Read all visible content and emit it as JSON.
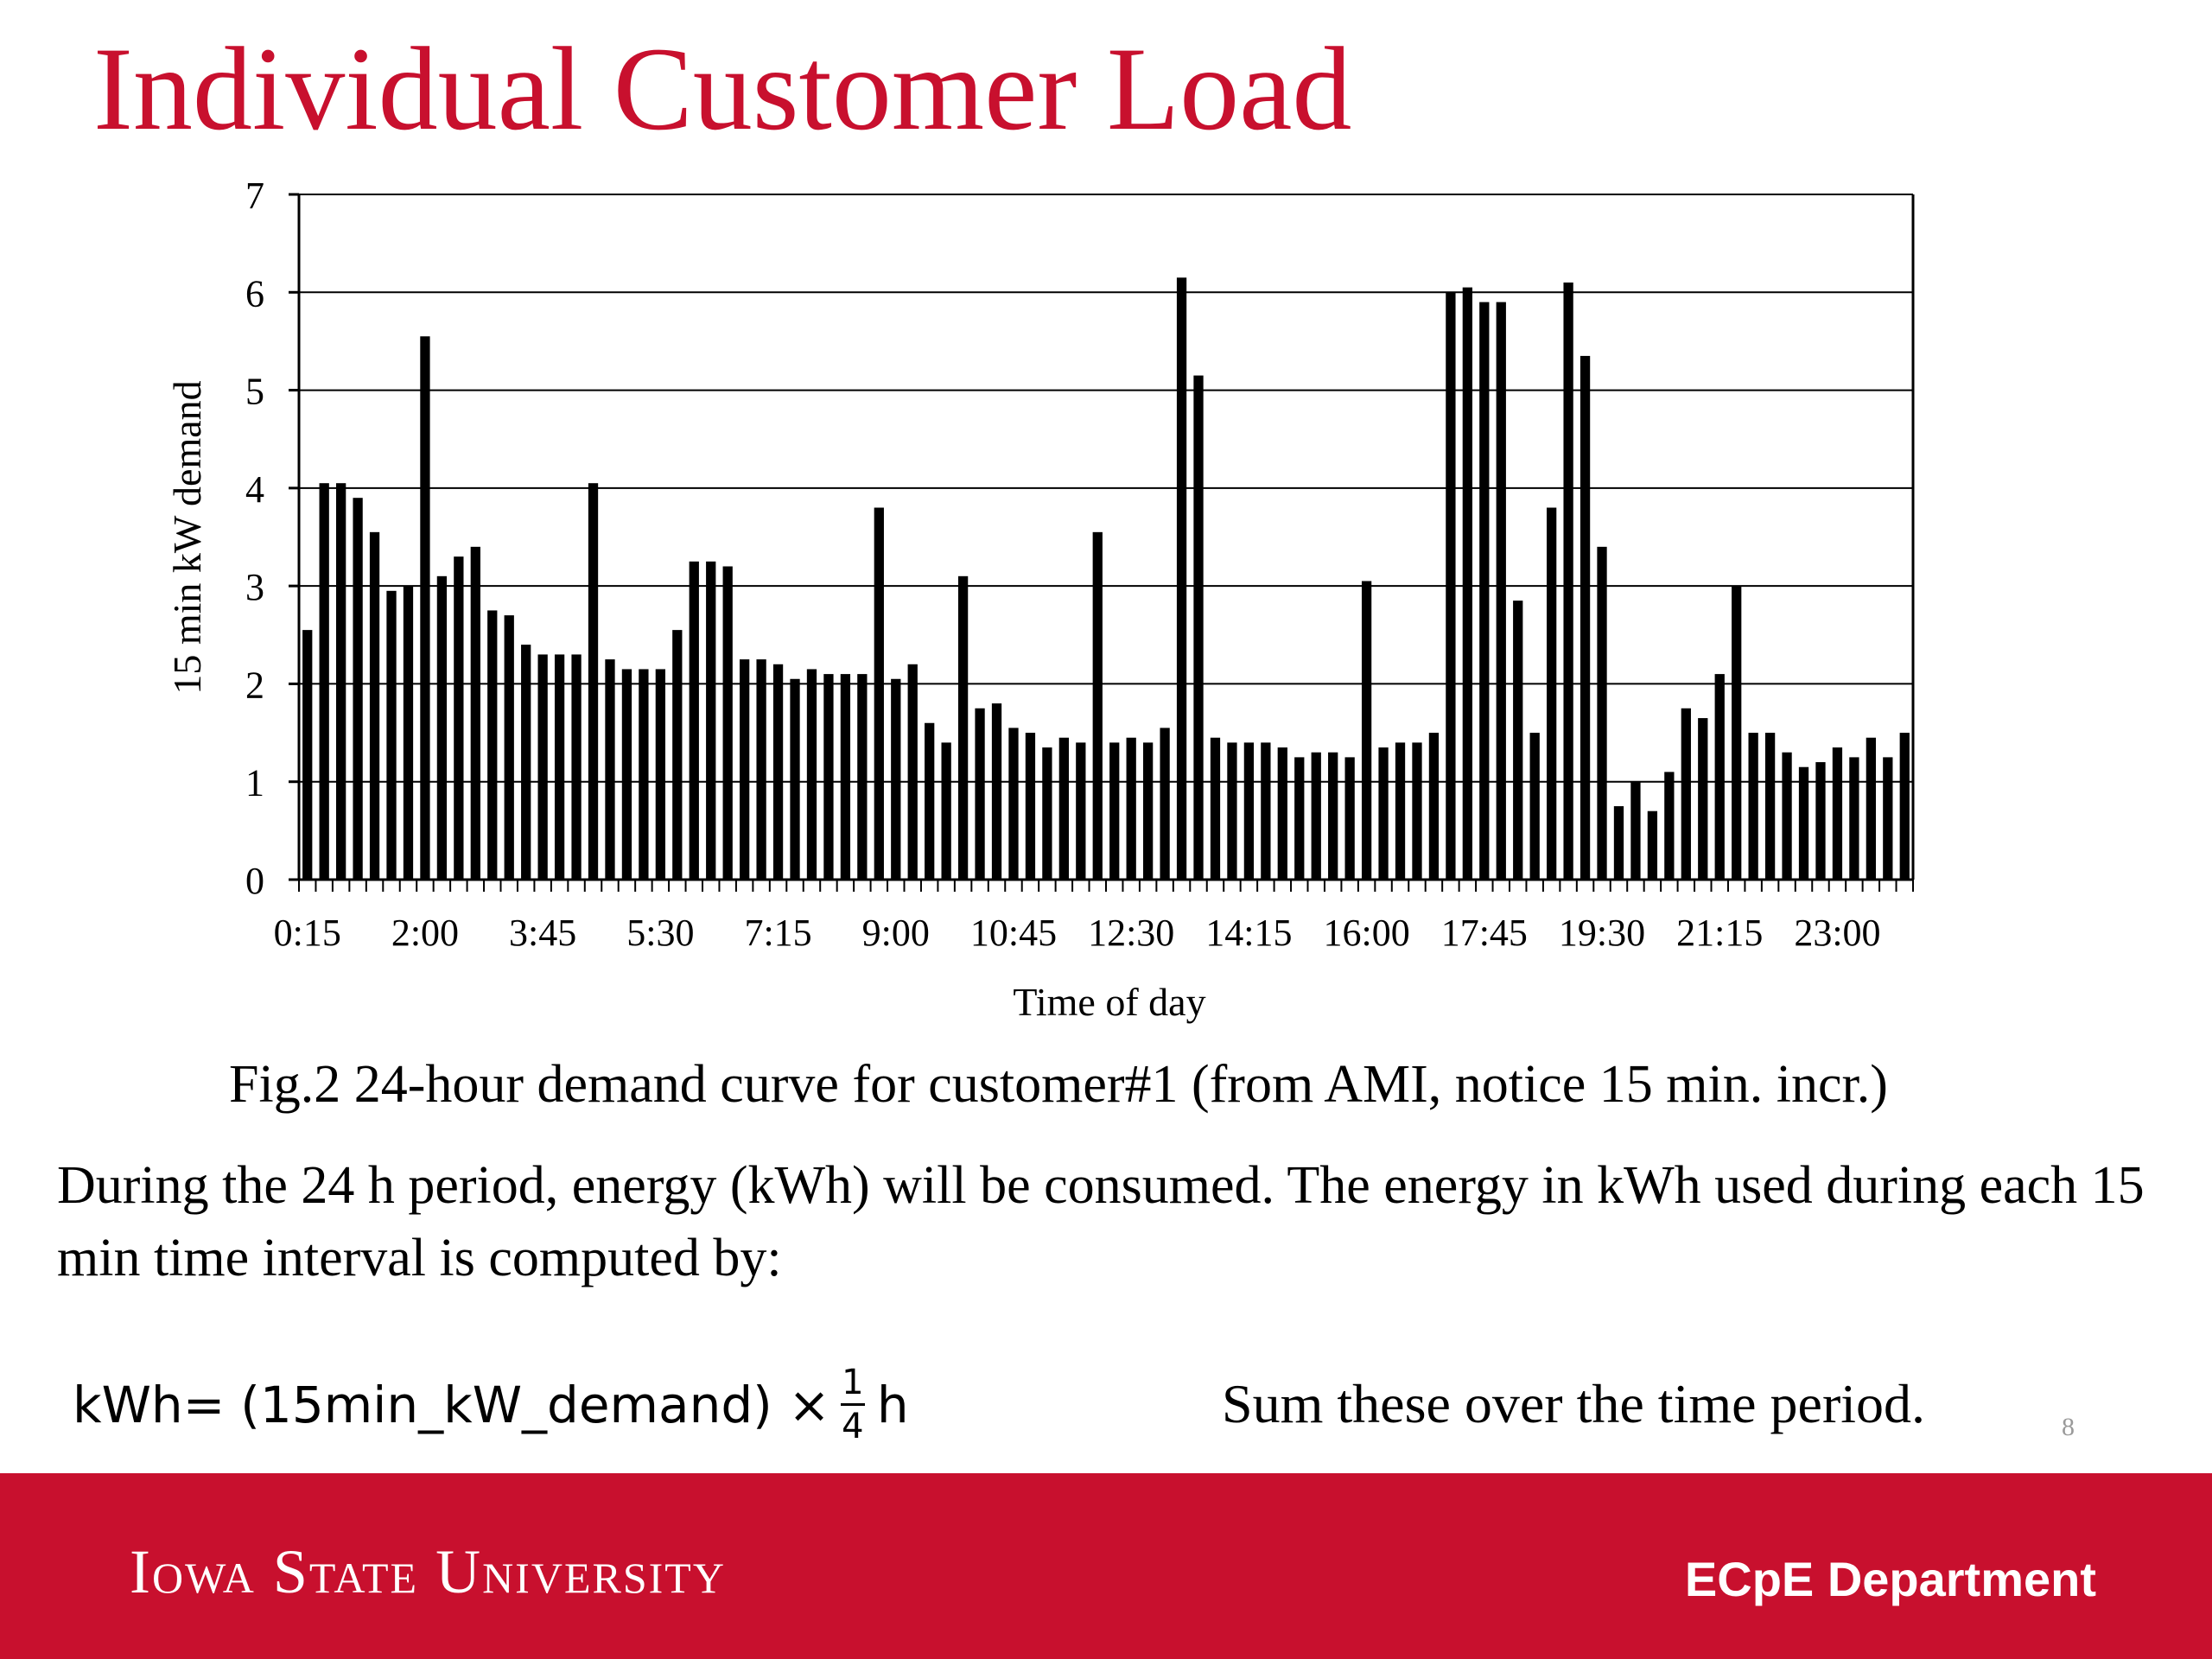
{
  "slide": {
    "title": "Individual Customer Load",
    "caption": "Fig.2 24-hour demand curve for customer#1 (from AMI, notice 15 min. incr.)",
    "body": "During the 24 h period, energy (kWh) will be consumed. The energy in kWh used during each 15 min time interval is computed by:",
    "formula": {
      "lhs": "kWh=",
      "expr": "(15min_kW_demand) ×",
      "numerator": "1",
      "denominator": "4",
      "unit": "h"
    },
    "sum_note": "Sum these over the time period.",
    "page_number": "8",
    "footer": {
      "logo_text": "Iowa State University",
      "department": "ECpE Department"
    },
    "colors": {
      "brand_red": "#c8102e",
      "footer_text": "#ffffff"
    }
  },
  "chart_data": {
    "type": "bar",
    "title": "",
    "xlabel": "Time of day",
    "ylabel": "15 min kW demand",
    "ylim": [
      0,
      7
    ],
    "yticks": [
      0,
      1,
      2,
      3,
      4,
      5,
      6,
      7
    ],
    "grid": true,
    "bar_color": "#000000",
    "tick_labels": [
      "0:15",
      "2:00",
      "3:45",
      "5:30",
      "7:15",
      "9:00",
      "10:45",
      "12:30",
      "14:15",
      "16:00",
      "17:45",
      "19:30",
      "21:15",
      "23:00"
    ],
    "categories": [
      "0:15",
      "0:30",
      "0:45",
      "1:00",
      "1:15",
      "1:30",
      "1:45",
      "2:00",
      "2:15",
      "2:30",
      "2:45",
      "3:00",
      "3:15",
      "3:30",
      "3:45",
      "4:00",
      "4:15",
      "4:30",
      "4:45",
      "5:00",
      "5:15",
      "5:30",
      "5:45",
      "6:00",
      "6:15",
      "6:30",
      "6:45",
      "7:00",
      "7:15",
      "7:30",
      "7:45",
      "8:00",
      "8:15",
      "8:30",
      "8:45",
      "9:00",
      "9:15",
      "9:30",
      "9:45",
      "10:00",
      "10:15",
      "10:30",
      "10:45",
      "11:00",
      "11:15",
      "11:30",
      "11:45",
      "12:00",
      "12:15",
      "12:30",
      "12:45",
      "13:00",
      "13:15",
      "13:30",
      "13:45",
      "14:00",
      "14:15",
      "14:30",
      "14:45",
      "15:00",
      "15:15",
      "15:30",
      "15:45",
      "16:00",
      "16:15",
      "16:30",
      "16:45",
      "17:00",
      "17:15",
      "17:30",
      "17:45",
      "18:00",
      "18:15",
      "18:30",
      "18:45",
      "19:00",
      "19:15",
      "19:30",
      "19:45",
      "20:00",
      "20:15",
      "20:30",
      "20:45",
      "21:00",
      "21:15",
      "21:30",
      "21:45",
      "22:00",
      "22:15",
      "22:30",
      "22:45",
      "23:00",
      "23:15",
      "23:30",
      "23:45",
      "24:00"
    ],
    "values": [
      2.55,
      4.05,
      4.05,
      3.9,
      3.55,
      2.95,
      3.0,
      5.55,
      3.1,
      3.3,
      3.4,
      2.75,
      2.7,
      2.4,
      2.3,
      2.3,
      2.3,
      4.05,
      2.25,
      2.15,
      2.15,
      2.15,
      2.55,
      3.25,
      3.25,
      3.2,
      2.25,
      2.25,
      2.2,
      2.05,
      2.15,
      2.1,
      2.1,
      2.1,
      3.8,
      2.05,
      2.2,
      1.6,
      1.4,
      3.1,
      1.75,
      1.8,
      1.55,
      1.5,
      1.35,
      1.45,
      1.4,
      3.55,
      1.4,
      1.45,
      1.4,
      1.55,
      6.15,
      5.15,
      1.45,
      1.4,
      1.4,
      1.4,
      1.35,
      1.25,
      1.3,
      1.3,
      1.25,
      3.05,
      1.35,
      1.4,
      1.4,
      1.5,
      6.0,
      6.05,
      5.9,
      5.9,
      2.85,
      1.5,
      3.8,
      6.1,
      5.35,
      3.4,
      0.75,
      1.0,
      0.7,
      1.1,
      1.75,
      1.65,
      2.1,
      3.0,
      1.5,
      1.5,
      1.3,
      1.15,
      1.2,
      1.35,
      1.25,
      1.45,
      1.25,
      1.5
    ]
  }
}
